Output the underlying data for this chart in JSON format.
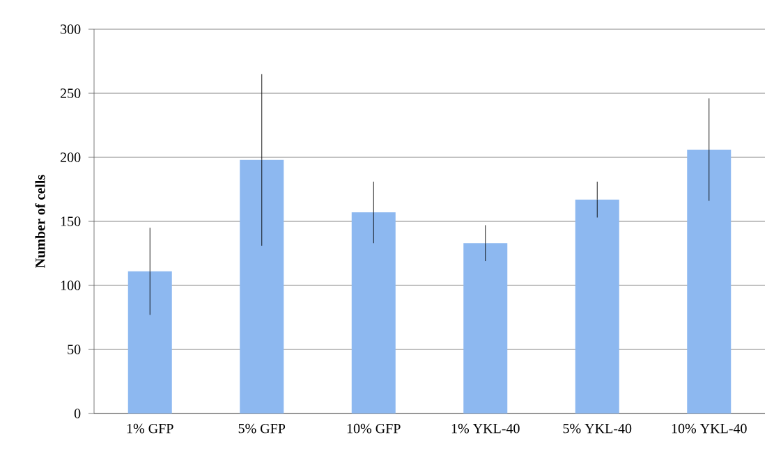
{
  "chart_data": {
    "type": "bar",
    "ylabel": "Number of cells",
    "categories": [
      "1% GFP",
      "5% GFP",
      "10% GFP",
      "1% YKL-40",
      "5% YKL-40",
      "10% YKL-40"
    ],
    "values": [
      111,
      198,
      157,
      133,
      167,
      206
    ],
    "errors": [
      34,
      67,
      24,
      14,
      14,
      40
    ],
    "color": "#8db8f0",
    "ylim": [
      0,
      300
    ],
    "yticks": [
      0,
      50,
      100,
      150,
      200,
      250,
      300
    ],
    "grid": "y"
  }
}
